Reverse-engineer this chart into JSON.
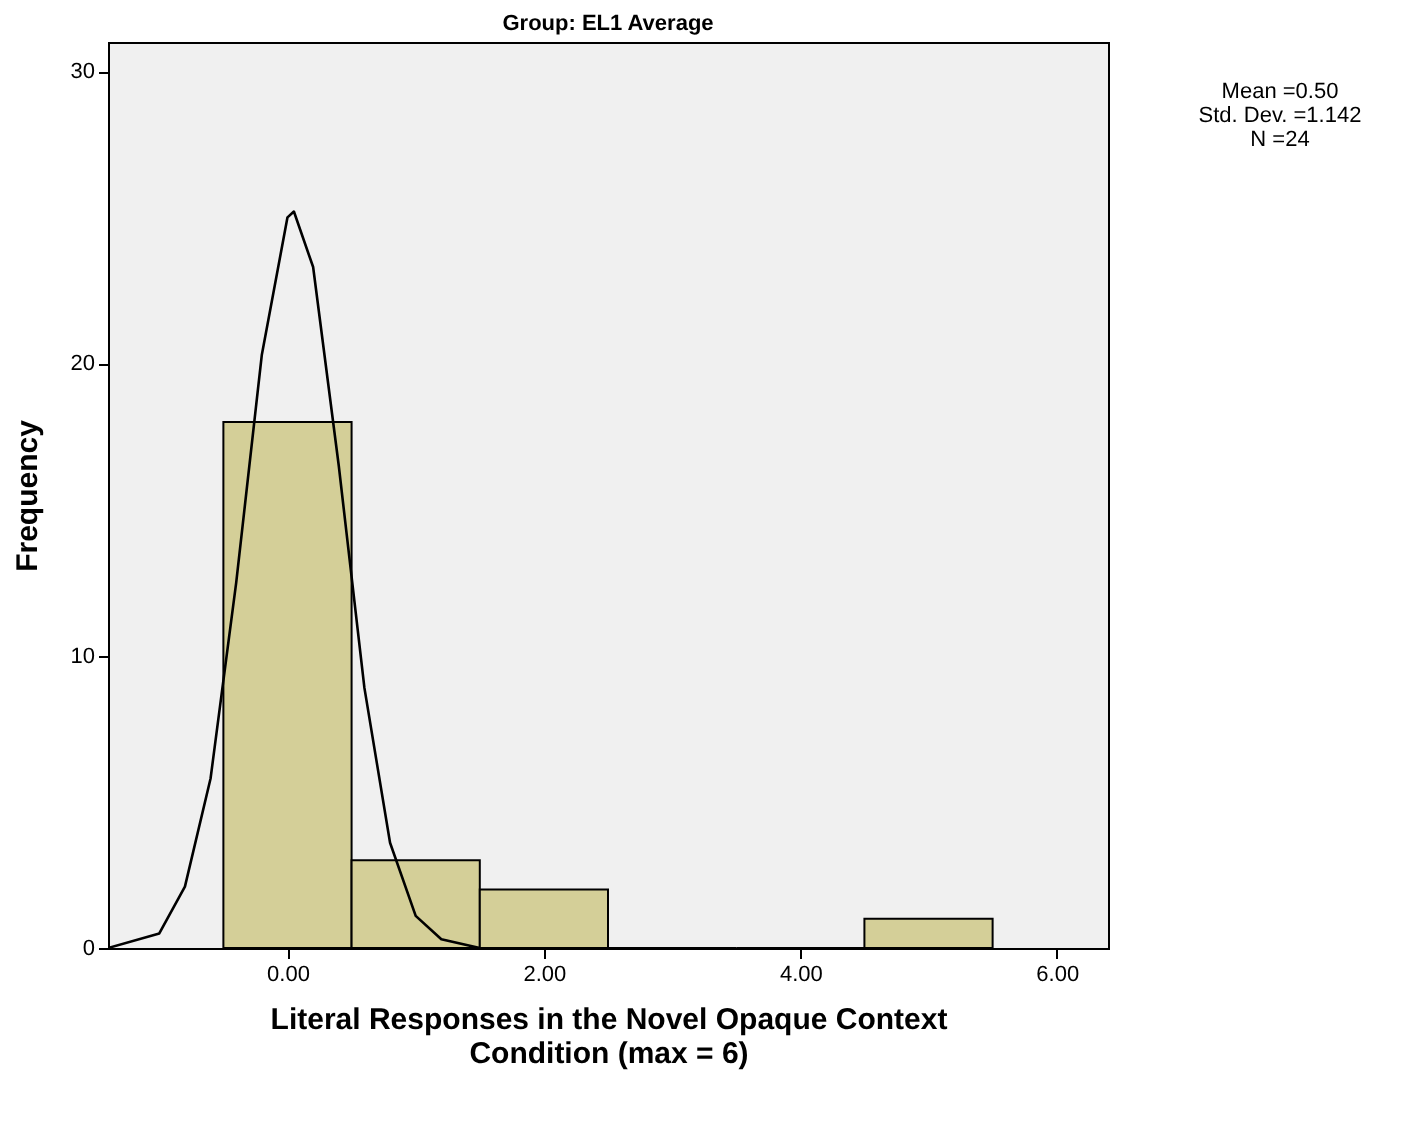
{
  "chart_data": {
    "type": "histogram",
    "title": "Group: EL1 Average",
    "xlabel": "Literal Responses in the Novel Opaque Context\nCondition (max = 6)",
    "ylabel": "Frequency",
    "bins": [
      -0.5,
      0.5,
      1.5,
      2.5,
      3.5,
      4.5,
      5.5
    ],
    "values": [
      18,
      3,
      2,
      0,
      0,
      1
    ],
    "color": "#d4cf98",
    "series": [
      {
        "type": "line",
        "color": "#000000",
        "x": [
          -1.4,
          -1.0,
          -0.8,
          -0.6,
          -0.4,
          -0.2,
          0,
          0.05,
          0.2,
          0.4,
          0.6,
          0.8,
          1.0,
          1.2,
          1.5
        ],
        "values": [
          0,
          0.5,
          2.1,
          5.8,
          12.5,
          20.3,
          25,
          25.2,
          23.3,
          16.5,
          8.9,
          3.6,
          1.1,
          0.3,
          0
        ]
      }
    ],
    "xlim": [
      -1.4,
      6.4
    ],
    "ylim": [
      0,
      31
    ],
    "xticks": [
      {
        "value": 0,
        "label": "0.00"
      },
      {
        "value": 2,
        "label": "2.00"
      },
      {
        "value": 4,
        "label": "4.00"
      },
      {
        "value": 6,
        "label": "6.00"
      }
    ],
    "yticks": [
      0,
      10,
      20,
      30
    ],
    "grid": false,
    "annotations": [
      "Mean =0.50\nStd. Dev. =1.142\nN =24"
    ]
  }
}
